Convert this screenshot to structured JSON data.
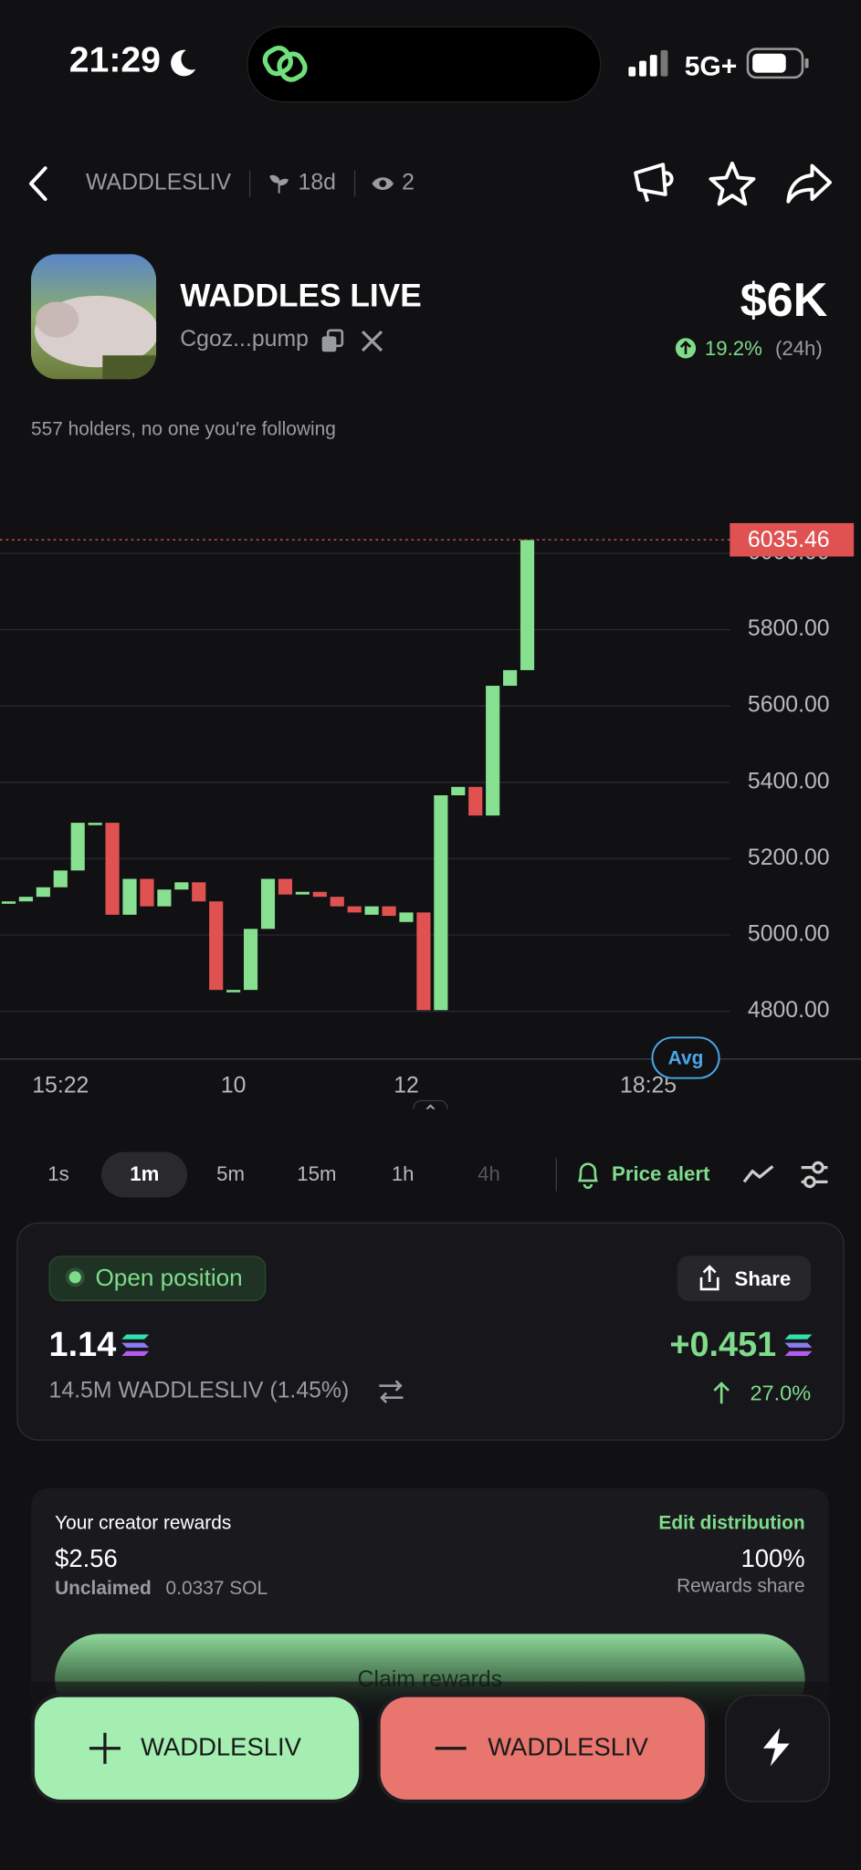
{
  "status_bar": {
    "time": "21:29",
    "network": "5G+"
  },
  "header": {
    "ticker": "WADDLESLIV",
    "age": "18d",
    "watchers": "2"
  },
  "token": {
    "name": "WADDLES LIVE",
    "address": "Cgoz...pump",
    "market_cap": "$6K",
    "change": "19.2%",
    "change_period": "(24h)",
    "holders_note": "557 holders, no one you're following"
  },
  "chart_data": {
    "type": "candlestick",
    "x": [
      0,
      1,
      2,
      3,
      4,
      5,
      6,
      7,
      8,
      9,
      10,
      11,
      12,
      13,
      14,
      15,
      16,
      17,
      18,
      19,
      20,
      21,
      22,
      23,
      24,
      25,
      26,
      27,
      28,
      29,
      30
    ],
    "open": [
      5088,
      5088,
      5100,
      5125,
      5169,
      5294,
      5294,
      5053,
      5147,
      5075,
      5119,
      5138,
      5088,
      4856,
      4856,
      5016,
      5147,
      5106,
      5113,
      5100,
      5075,
      5053,
      5075,
      5034,
      5059,
      4803,
      5366,
      5388,
      5313,
      5653,
      5694
    ],
    "close": [
      5088,
      5100,
      5125,
      5169,
      5294,
      5294,
      5053,
      5147,
      5075,
      5119,
      5138,
      5088,
      4856,
      4856,
      5016,
      5147,
      5106,
      5113,
      5100,
      5075,
      5059,
      5075,
      5050,
      5059,
      4803,
      5366,
      5388,
      5313,
      5653,
      5694,
      6035
    ],
    "up_color": "#86e08f",
    "down_color": "#e05252",
    "xlim": [
      -0.5,
      49.3
    ],
    "xticks": [
      {
        "value": 3,
        "label": "15:22"
      },
      {
        "value": 13,
        "label": "10"
      },
      {
        "value": 23,
        "label": "12"
      },
      {
        "value": 37,
        "label": "18:25"
      }
    ],
    "ylim": [
      4675,
      6100
    ],
    "yticks": [
      {
        "value": 4800,
        "label": "4800.00"
      },
      {
        "value": 5000,
        "label": "5000.00"
      },
      {
        "value": 5200,
        "label": "5200.00"
      },
      {
        "value": 5400,
        "label": "5400.00"
      },
      {
        "value": 5600,
        "label": "5600.00"
      },
      {
        "value": 5800,
        "label": "5800.00"
      },
      {
        "value": 6000,
        "label": "6000.00"
      }
    ],
    "grid": true,
    "last_price": 6035.46,
    "avg_label": "Avg"
  },
  "timeframes": {
    "options": [
      "1s",
      "1m",
      "5m",
      "15m",
      "1h",
      "4h"
    ],
    "price_alert": "Price alert"
  },
  "position": {
    "badge": "Open position",
    "share": "Share",
    "amount": "1.14",
    "pnl": "+0.451",
    "holding": "14.5M WADDLESLIV (1.45%)",
    "pnl_percent": "27.0%"
  },
  "rewards": {
    "title": "Your creator rewards",
    "edit": "Edit distribution",
    "amount": "$2.56",
    "unclaimed_label": "Unclaimed",
    "unclaimed_value": "0.0337 SOL",
    "share": "100%",
    "share_label": "Rewards share",
    "claim": "Claim rewards"
  },
  "actions": {
    "buy": "WADDLESLIV",
    "sell": "WADDLESLIV"
  }
}
